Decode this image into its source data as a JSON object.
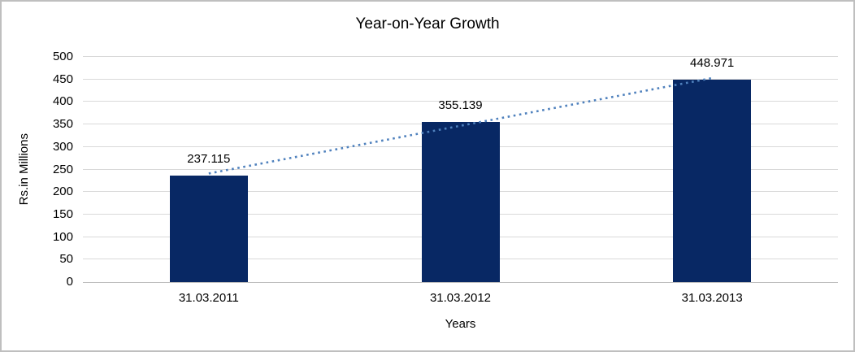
{
  "window": {
    "background": "#ffffff",
    "border_color": "#bfbfbf"
  },
  "chart_data": {
    "type": "bar",
    "title": "Year-on-Year Growth",
    "categories": [
      "31.03.2011",
      "31.03.2012",
      "31.03.2013"
    ],
    "values": [
      237.115,
      355.139,
      448.971
    ],
    "data_labels": [
      "237.115",
      "355.139",
      "448.971"
    ],
    "xlabel": "Years",
    "ylabel": "Rs.in Millions",
    "ylim": [
      0,
      500
    ],
    "ytick_step": 50,
    "yticks": [
      0,
      50,
      100,
      150,
      200,
      250,
      300,
      350,
      400,
      450,
      500
    ],
    "grid": true,
    "legend": "none",
    "trendline": {
      "type": "linear",
      "style": "dotted"
    },
    "colors": {
      "bar": "#082864",
      "trendline": "#4f81bd",
      "gridline": "#d9d9d9",
      "axis_line": "#bfbfbf",
      "text": "#000000"
    }
  }
}
